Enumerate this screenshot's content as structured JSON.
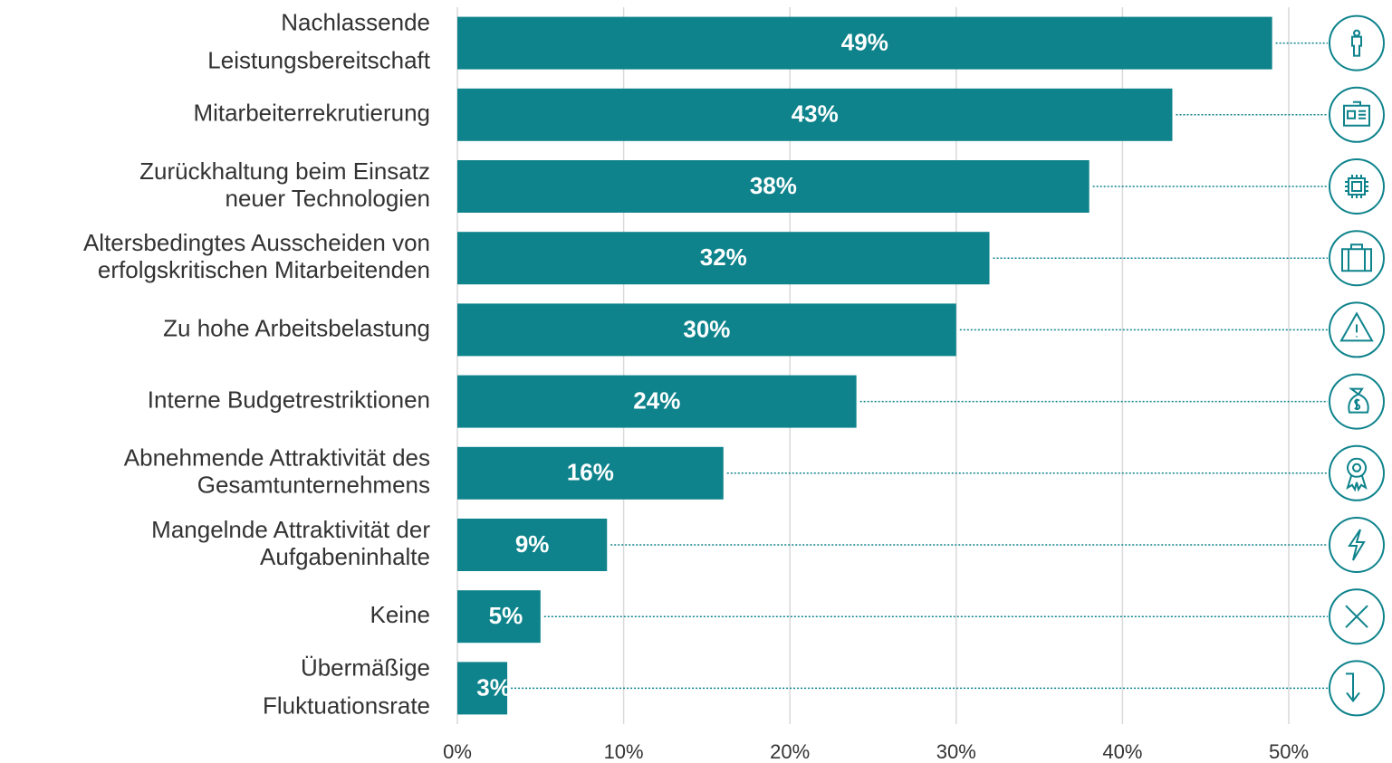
{
  "chart_data": {
    "type": "bar",
    "orientation": "horizontal",
    "categories": [
      [
        "Nachlassende",
        "Leistungsbereitschaft"
      ],
      [
        "Mitarbeiterrekrutierung"
      ],
      [
        "Zurückhaltung beim Einsatz",
        "neuer Technologien"
      ],
      [
        "Altersbedingtes Ausscheiden von",
        "erfolgskritischen Mitarbeitenden"
      ],
      [
        "Zu hohe Arbeitsbelastung"
      ],
      [
        "Interne Budgetrestriktionen"
      ],
      [
        "Abnehmende Attraktivität des",
        "Gesamtunternehmens"
      ],
      [
        "Mangelnde Attraktivität der",
        "Aufgabeninhalte"
      ],
      [
        "Keine"
      ],
      [
        "Übermäßige",
        "Fluktuationsrate"
      ]
    ],
    "values": [
      49,
      43,
      38,
      32,
      30,
      24,
      16,
      9,
      5,
      3
    ],
    "value_labels": [
      "49%",
      "43%",
      "38%",
      "32%",
      "30%",
      "24%",
      "16%",
      "9%",
      "5%",
      "3%"
    ],
    "color": "#0e838c",
    "xlim": [
      0,
      50
    ],
    "xticks": [
      {
        "value": 0,
        "label": "0%"
      },
      {
        "value": 10,
        "label": "10%"
      },
      {
        "value": 20,
        "label": "20%"
      },
      {
        "value": 30,
        "label": "30%"
      },
      {
        "value": 40,
        "label": "40%"
      },
      {
        "value": 50,
        "label": "50%"
      }
    ],
    "grid": true
  }
}
